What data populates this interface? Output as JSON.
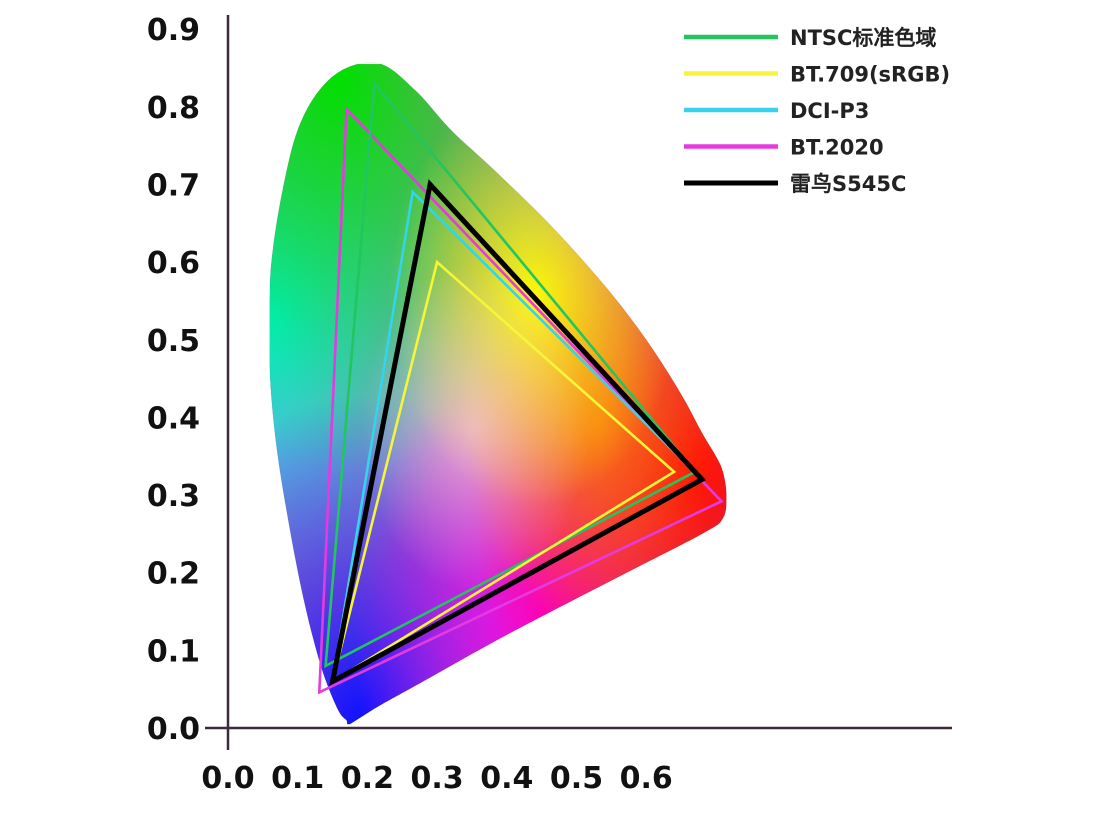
{
  "chart_data": {
    "type": "scatter",
    "title": "",
    "xlabel": "",
    "ylabel": "",
    "xlim": [
      0.0,
      0.7
    ],
    "ylim": [
      0.0,
      0.9
    ],
    "x_ticks": [
      "0.0",
      "0.1",
      "0.2",
      "0.3",
      "0.4",
      "0.5",
      "0.6"
    ],
    "y_ticks": [
      "0.0",
      "0.1",
      "0.2",
      "0.3",
      "0.4",
      "0.5",
      "0.6",
      "0.7",
      "0.8",
      "0.9"
    ],
    "grid": false,
    "legend_position": "top-right",
    "spectral_locus": [
      [
        0.175,
        0.005
      ],
      [
        0.17,
        0.01
      ],
      [
        0.16,
        0.02
      ],
      [
        0.145,
        0.05
      ],
      [
        0.13,
        0.09
      ],
      [
        0.11,
        0.16
      ],
      [
        0.09,
        0.25
      ],
      [
        0.07,
        0.36
      ],
      [
        0.06,
        0.46
      ],
      [
        0.06,
        0.56
      ],
      [
        0.065,
        0.62
      ],
      [
        0.08,
        0.7
      ],
      [
        0.1,
        0.77
      ],
      [
        0.13,
        0.82
      ],
      [
        0.17,
        0.85
      ],
      [
        0.22,
        0.855
      ],
      [
        0.27,
        0.82
      ],
      [
        0.32,
        0.77
      ],
      [
        0.38,
        0.72
      ],
      [
        0.46,
        0.65
      ],
      [
        0.54,
        0.57
      ],
      [
        0.6,
        0.5
      ],
      [
        0.65,
        0.43
      ],
      [
        0.68,
        0.38
      ],
      [
        0.7,
        0.35
      ],
      [
        0.71,
        0.33
      ],
      [
        0.715,
        0.3
      ],
      [
        0.71,
        0.27
      ],
      [
        0.68,
        0.25
      ],
      [
        0.55,
        0.19
      ],
      [
        0.4,
        0.12
      ],
      [
        0.28,
        0.06
      ],
      [
        0.21,
        0.025
      ],
      [
        0.175,
        0.005
      ]
    ],
    "series": [
      {
        "name": "NTSC标准色域",
        "color": "#22c55e",
        "points": [
          [
            0.67,
            0.33
          ],
          [
            0.21,
            0.83
          ],
          [
            0.14,
            0.08
          ]
        ]
      },
      {
        "name": "BT.709(sRGB)",
        "color": "#f5f53a",
        "points": [
          [
            0.64,
            0.33
          ],
          [
            0.3,
            0.6
          ],
          [
            0.15,
            0.06
          ]
        ]
      },
      {
        "name": "DCI-P3",
        "color": "#35d4ec",
        "points": [
          [
            0.68,
            0.32
          ],
          [
            0.265,
            0.69
          ],
          [
            0.15,
            0.06
          ]
        ]
      },
      {
        "name": "BT.2020",
        "color": "#e53ae0",
        "points": [
          [
            0.708,
            0.292
          ],
          [
            0.17,
            0.797
          ],
          [
            0.131,
            0.046
          ]
        ]
      },
      {
        "name": "雷鸟S545C",
        "color": "#000000",
        "points": [
          [
            0.68,
            0.32
          ],
          [
            0.29,
            0.7
          ],
          [
            0.15,
            0.06
          ]
        ]
      }
    ]
  }
}
